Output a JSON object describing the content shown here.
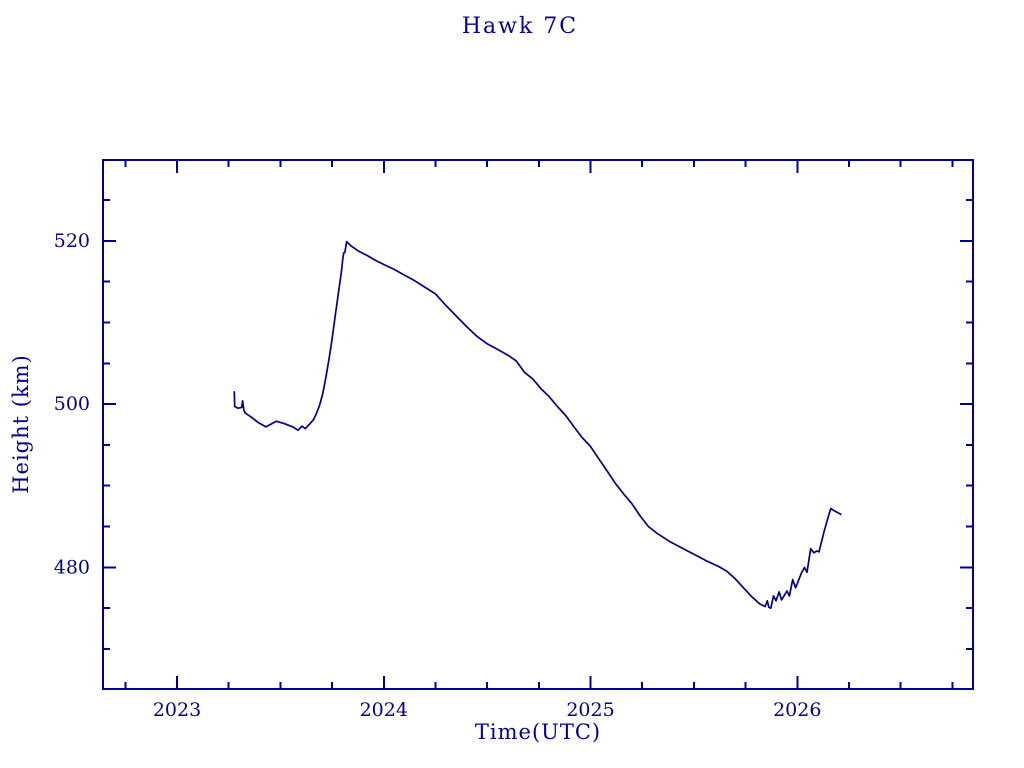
{
  "colors": {
    "background": "#ffffff",
    "axis": "#000099",
    "text": "#000099",
    "line": "#00008b"
  },
  "chart_data": {
    "type": "line",
    "title": "Hawk 7C",
    "xlabel": "Time(UTC)",
    "ylabel": "Height (km)",
    "xlim": [
      2022.642,
      2026.85
    ],
    "ylim": [
      465.1,
      529.9
    ],
    "x_major_ticks": [
      2023,
      2024,
      2025,
      2026
    ],
    "x_tick_labels": [
      "2023",
      "2024",
      "2025",
      "2026"
    ],
    "x_minor_interval": 0.25,
    "y_major_ticks": [
      480,
      500,
      520
    ],
    "y_tick_labels": [
      "480",
      "500",
      "520"
    ],
    "y_minor_interval": 5,
    "grid": false,
    "legend": null,
    "series": [
      {
        "name": "satellite-height",
        "points": [
          [
            2023.277,
            501.5
          ],
          [
            2023.279,
            499.7
          ],
          [
            2023.295,
            499.5
          ],
          [
            2023.313,
            499.6
          ],
          [
            2023.317,
            500.4
          ],
          [
            2023.323,
            499.3
          ],
          [
            2023.33,
            498.9
          ],
          [
            2023.36,
            498.4
          ],
          [
            2023.39,
            497.8
          ],
          [
            2023.43,
            497.2
          ],
          [
            2023.48,
            497.9
          ],
          [
            2023.52,
            497.6
          ],
          [
            2023.56,
            497.2
          ],
          [
            2023.585,
            496.8
          ],
          [
            2023.605,
            497.3
          ],
          [
            2023.62,
            497.0
          ],
          [
            2023.64,
            497.5
          ],
          [
            2023.66,
            498.1
          ],
          [
            2023.675,
            498.9
          ],
          [
            2023.69,
            499.9
          ],
          [
            2023.705,
            501.3
          ],
          [
            2023.72,
            503.3
          ],
          [
            2023.735,
            505.5
          ],
          [
            2023.75,
            508.0
          ],
          [
            2023.765,
            510.8
          ],
          [
            2023.78,
            513.5
          ],
          [
            2023.795,
            516.2
          ],
          [
            2023.802,
            517.8
          ],
          [
            2023.806,
            518.5
          ],
          [
            2023.812,
            518.6
          ],
          [
            2023.82,
            519.9
          ],
          [
            2023.84,
            519.4
          ],
          [
            2023.88,
            518.7
          ],
          [
            2023.92,
            518.2
          ],
          [
            2023.96,
            517.6
          ],
          [
            2024.0,
            517.1
          ],
          [
            2024.05,
            516.5
          ],
          [
            2024.1,
            515.8
          ],
          [
            2024.15,
            515.1
          ],
          [
            2024.2,
            514.3
          ],
          [
            2024.25,
            513.5
          ],
          [
            2024.3,
            512.1
          ],
          [
            2024.35,
            510.8
          ],
          [
            2024.4,
            509.5
          ],
          [
            2024.45,
            508.3
          ],
          [
            2024.5,
            507.4
          ],
          [
            2024.55,
            506.7
          ],
          [
            2024.6,
            506.0
          ],
          [
            2024.64,
            505.3
          ],
          [
            2024.68,
            503.9
          ],
          [
            2024.72,
            503.1
          ],
          [
            2024.76,
            501.9
          ],
          [
            2024.8,
            500.9
          ],
          [
            2024.84,
            499.7
          ],
          [
            2024.88,
            498.6
          ],
          [
            2024.92,
            497.2
          ],
          [
            2024.96,
            495.9
          ],
          [
            2025.0,
            494.8
          ],
          [
            2025.04,
            493.3
          ],
          [
            2025.08,
            491.8
          ],
          [
            2025.12,
            490.3
          ],
          [
            2025.16,
            489.0
          ],
          [
            2025.2,
            487.8
          ],
          [
            2025.24,
            486.3
          ],
          [
            2025.28,
            485.0
          ],
          [
            2025.32,
            484.2
          ],
          [
            2025.38,
            483.2
          ],
          [
            2025.44,
            482.4
          ],
          [
            2025.5,
            481.6
          ],
          [
            2025.56,
            480.8
          ],
          [
            2025.62,
            480.1
          ],
          [
            2025.66,
            479.5
          ],
          [
            2025.7,
            478.6
          ],
          [
            2025.74,
            477.5
          ],
          [
            2025.78,
            476.4
          ],
          [
            2025.82,
            475.5
          ],
          [
            2025.845,
            475.2
          ],
          [
            2025.855,
            475.9
          ],
          [
            2025.863,
            475.1
          ],
          [
            2025.872,
            475.0
          ],
          [
            2025.885,
            476.5
          ],
          [
            2025.897,
            475.9
          ],
          [
            2025.912,
            477.0
          ],
          [
            2025.924,
            476.0
          ],
          [
            2025.95,
            477.1
          ],
          [
            2025.962,
            476.5
          ],
          [
            2025.978,
            478.5
          ],
          [
            2025.992,
            477.5
          ],
          [
            2026.02,
            479.3
          ],
          [
            2026.035,
            480.0
          ],
          [
            2026.047,
            479.4
          ],
          [
            2026.065,
            482.3
          ],
          [
            2026.08,
            481.8
          ],
          [
            2026.095,
            482.0
          ],
          [
            2026.105,
            481.9
          ],
          [
            2026.13,
            484.4
          ],
          [
            2026.15,
            486.2
          ],
          [
            2026.162,
            487.2
          ],
          [
            2026.175,
            487.0
          ],
          [
            2026.21,
            486.5
          ]
        ]
      }
    ]
  }
}
